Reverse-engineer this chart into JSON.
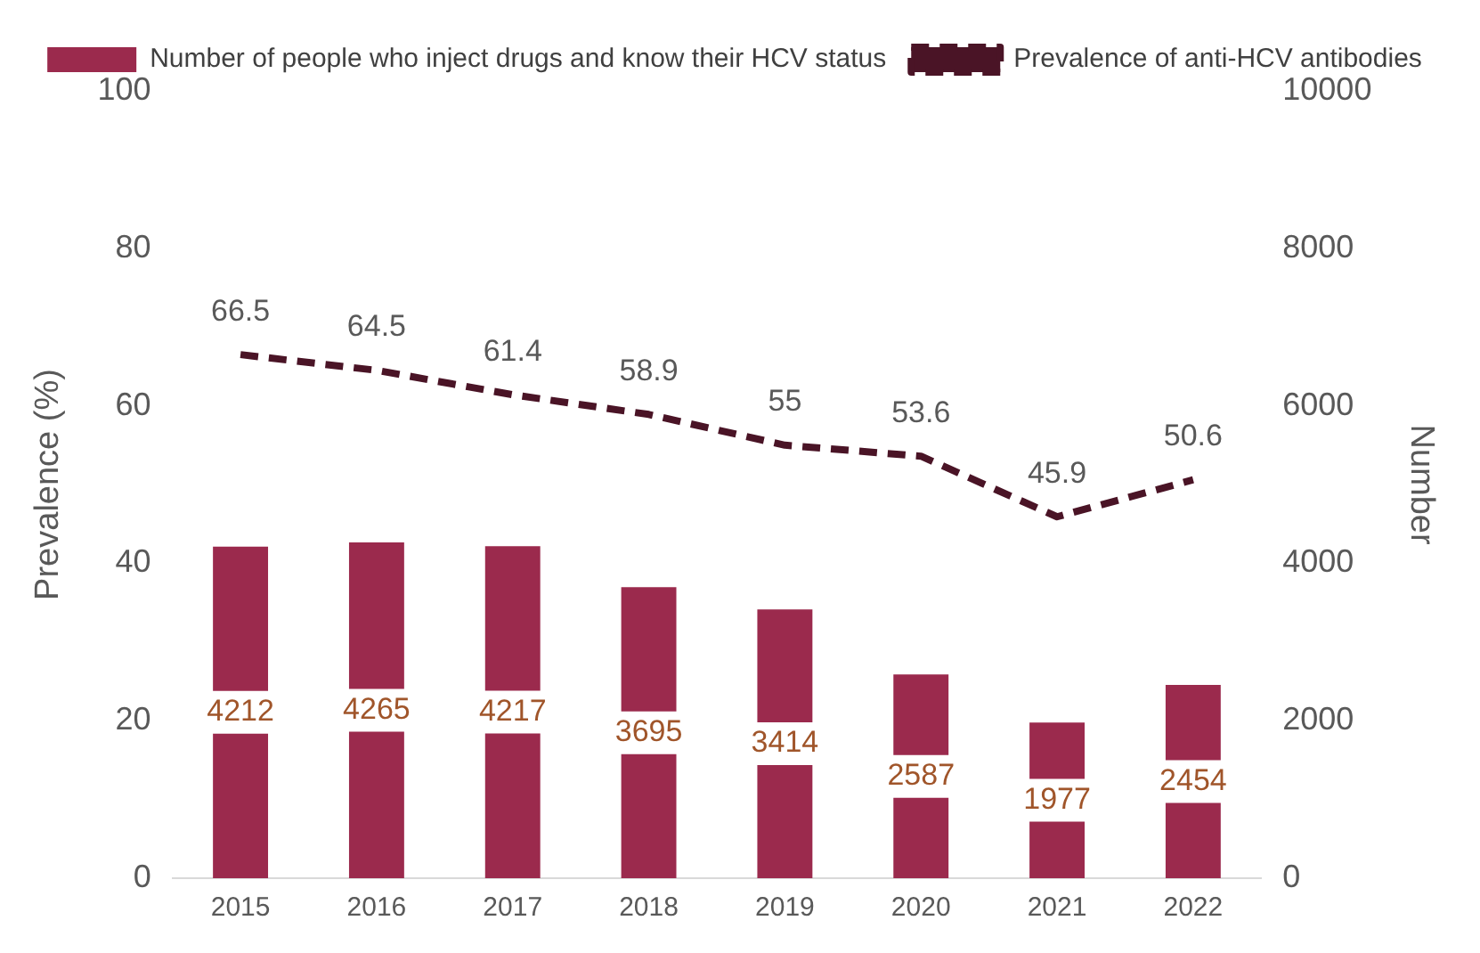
{
  "chart_data": {
    "type": "bar",
    "categories": [
      "2015",
      "2016",
      "2017",
      "2018",
      "2019",
      "2020",
      "2021",
      "2022"
    ],
    "ylabel": "Prevalence (%)",
    "y2label": "Number",
    "ylim": [
      0,
      100
    ],
    "yticks": [
      0,
      20,
      40,
      60,
      80,
      100
    ],
    "y2lim": [
      0,
      10000
    ],
    "y2ticks": [
      0,
      2000,
      4000,
      6000,
      8000,
      10000
    ],
    "grid": false,
    "legend": "top",
    "data_labels": true,
    "series": [
      {
        "name": "Number of people who inject drugs and know their HCV status",
        "axis": "y2",
        "color": "#9b2a4d",
        "values": [
          4212,
          4265,
          4217,
          3695,
          3414,
          2587,
          1977,
          2454
        ]
      },
      {
        "name": "Prevalence of anti-HCV antibodies",
        "type": "line",
        "axis": "y",
        "color": "#4a1426",
        "line_style": "dashed",
        "marker": "none",
        "values": [
          66.5,
          64.5,
          61.4,
          58.9,
          55,
          53.6,
          45.9,
          50.6
        ]
      }
    ]
  }
}
